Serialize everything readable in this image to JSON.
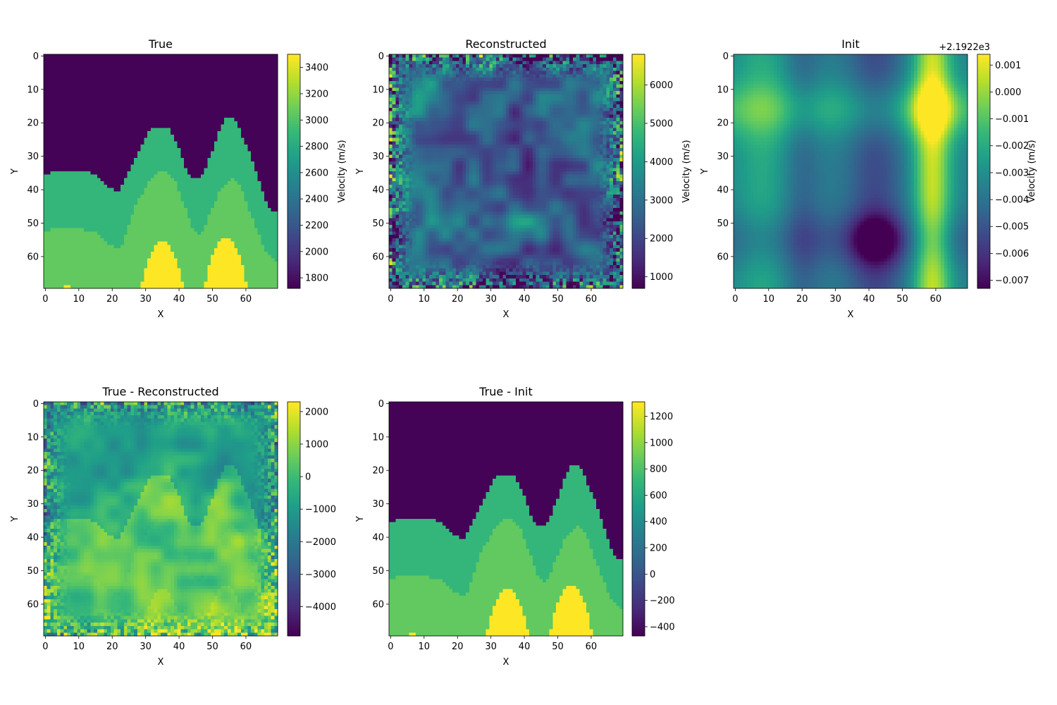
{
  "figure": {
    "colormap": "viridis",
    "viridis_stops": [
      "#440154",
      "#482878",
      "#3e4989",
      "#31688e",
      "#26828e",
      "#1f9e89",
      "#35b779",
      "#6ece58",
      "#b5de2b",
      "#fde725"
    ]
  },
  "chart_data": [
    {
      "type": "heatmap",
      "title": "True",
      "xlabel": "X",
      "ylabel": "Y",
      "xticks": [
        0,
        10,
        20,
        30,
        40,
        50,
        60
      ],
      "yticks": [
        0,
        10,
        20,
        30,
        40,
        50,
        60
      ],
      "grid_size": [
        70,
        70
      ],
      "colorbar": {
        "label": "Velocity (m/s)",
        "min": 1720,
        "max": 3500,
        "ticks": [
          1800,
          2000,
          2200,
          2400,
          2600,
          2800,
          3000,
          3200,
          3400
        ],
        "offset_text": ""
      },
      "field": "layered",
      "layers": {
        "top_boundary_points": [
          [
            0,
            36
          ],
          [
            5,
            34.5
          ],
          [
            13,
            34.5
          ],
          [
            22,
            41.5
          ],
          [
            27,
            32
          ],
          [
            31,
            24
          ],
          [
            33,
            21.5
          ],
          [
            37,
            21.5
          ],
          [
            40,
            27
          ],
          [
            43,
            35
          ],
          [
            45,
            37.5
          ],
          [
            47,
            37
          ],
          [
            50,
            30
          ],
          [
            53,
            21.5
          ],
          [
            55,
            18.5
          ],
          [
            57,
            19
          ],
          [
            61,
            28
          ],
          [
            64,
            36
          ],
          [
            67,
            45
          ],
          [
            69,
            47
          ]
        ],
        "mid_boundary_points": [
          [
            0,
            53
          ],
          [
            5,
            51.5
          ],
          [
            15,
            53
          ],
          [
            20,
            57
          ],
          [
            23,
            58
          ],
          [
            28,
            44
          ],
          [
            33,
            36
          ],
          [
            36,
            34.5
          ],
          [
            39,
            37
          ],
          [
            42,
            45
          ],
          [
            45,
            53
          ],
          [
            47,
            54
          ],
          [
            50,
            47
          ],
          [
            53,
            40
          ],
          [
            56,
            37
          ],
          [
            59,
            39
          ],
          [
            62,
            48
          ],
          [
            66,
            58
          ],
          [
            69,
            62
          ]
        ],
        "values": [
          1730,
          2900,
          3060,
          3500
        ]
      },
      "peaks": [
        {
          "center_x": 35.5,
          "half_width": 6.5,
          "top_y": 56
        },
        {
          "center_x": 54.5,
          "half_width": 6.5,
          "top_y": 55
        }
      ],
      "specks": [
        [
          6,
          69
        ],
        [
          7,
          69
        ]
      ]
    },
    {
      "type": "heatmap",
      "title": "Reconstructed",
      "xlabel": "X",
      "ylabel": "Y",
      "xticks": [
        0,
        10,
        20,
        30,
        40,
        50,
        60
      ],
      "yticks": [
        0,
        10,
        20,
        30,
        40,
        50,
        60
      ],
      "grid_size": [
        70,
        70
      ],
      "colorbar": {
        "label": "Velocity (m/s)",
        "min": 700,
        "max": 6800,
        "ticks": [
          1000,
          2000,
          3000,
          4000,
          5000,
          6000
        ],
        "offset_text": ""
      },
      "field": "noise",
      "noise": {
        "base": 2600,
        "spread": 1500,
        "edge_spread": 3500,
        "seed": 7
      }
    },
    {
      "type": "heatmap",
      "title": "Init",
      "xlabel": "X",
      "ylabel": "Y",
      "xticks": [
        0,
        10,
        20,
        30,
        40,
        50,
        60
      ],
      "yticks": [
        0,
        10,
        20,
        30,
        40,
        50,
        60
      ],
      "grid_size": [
        70,
        70
      ],
      "colorbar": {
        "label": "Velocity (m/s)",
        "min": -0.0073,
        "max": 0.0014,
        "ticks": [
          0.001,
          0.0,
          -0.001,
          -0.002,
          -0.003,
          -0.004,
          -0.005,
          -0.006,
          -0.007
        ],
        "tick_labels": [
          "0.001",
          "0.000",
          "−0.001",
          "−0.002",
          "−0.003",
          "−0.004",
          "−0.005",
          "−0.006",
          "−0.007"
        ],
        "offset_text": "+2.1922e3"
      },
      "field": "smooth",
      "smooth": {
        "base": -0.0035,
        "columns": [
          {
            "x": 8,
            "w": 6,
            "a": 0.0014
          },
          {
            "x": 20,
            "w": 4,
            "a": -0.001
          },
          {
            "x": 42,
            "w": 6,
            "a": -0.0018
          },
          {
            "x": 59,
            "w": 4,
            "a": 0.0042
          }
        ],
        "rows": [
          {
            "y": 16,
            "w": 6,
            "a": 0.0018
          },
          {
            "y": 55,
            "w": 6,
            "a": -0.0012
          }
        ],
        "blobs": [
          {
            "x": 42,
            "y": 55,
            "w": 5,
            "a": -0.0028
          },
          {
            "x": 59,
            "y": 16,
            "w": 5,
            "a": 0.0016
          }
        ]
      }
    },
    {
      "type": "heatmap",
      "title": "True - Reconstructed",
      "xlabel": "X",
      "ylabel": "Y",
      "xticks": [
        0,
        10,
        20,
        30,
        40,
        50,
        60
      ],
      "yticks": [
        0,
        10,
        20,
        30,
        40,
        50,
        60
      ],
      "grid_size": [
        70,
        70
      ],
      "colorbar": {
        "label": "",
        "min": -4900,
        "max": 2300,
        "ticks": [
          2000,
          1000,
          0,
          -1000,
          -2000,
          -3000,
          -4000
        ],
        "tick_labels": [
          "2000",
          "1000",
          "0",
          "−1000",
          "−2000",
          "−3000",
          "−4000"
        ],
        "offset_text": ""
      },
      "field": "difference",
      "noise": {
        "base": -700,
        "spread": 1100,
        "edge_spread": 2600,
        "seed": 11
      }
    },
    {
      "type": "heatmap",
      "title": "True - Init",
      "xlabel": "X",
      "ylabel": "Y",
      "xticks": [
        0,
        10,
        20,
        30,
        40,
        50,
        60
      ],
      "yticks": [
        0,
        10,
        20,
        30,
        40,
        50,
        60
      ],
      "grid_size": [
        70,
        70
      ],
      "colorbar": {
        "label": "",
        "min": -470,
        "max": 1310,
        "ticks": [
          1200,
          1000,
          800,
          600,
          400,
          200,
          0,
          -200,
          -400
        ],
        "tick_labels": [
          "1200",
          "1000",
          "800",
          "600",
          "400",
          "200",
          "0",
          "−200",
          "−400"
        ],
        "offset_text": ""
      },
      "field": "layered",
      "layers": {
        "top_boundary_points": [
          [
            0,
            36
          ],
          [
            5,
            34.5
          ],
          [
            13,
            34.5
          ],
          [
            22,
            41.5
          ],
          [
            27,
            32
          ],
          [
            31,
            24
          ],
          [
            33,
            21.5
          ],
          [
            37,
            21.5
          ],
          [
            40,
            27
          ],
          [
            43,
            35
          ],
          [
            45,
            37.5
          ],
          [
            47,
            37
          ],
          [
            50,
            30
          ],
          [
            53,
            21.5
          ],
          [
            55,
            18.5
          ],
          [
            57,
            19
          ],
          [
            61,
            28
          ],
          [
            64,
            36
          ],
          [
            67,
            45
          ],
          [
            69,
            47
          ]
        ],
        "mid_boundary_points": [
          [
            0,
            53
          ],
          [
            5,
            51.5
          ],
          [
            15,
            53
          ],
          [
            20,
            57
          ],
          [
            23,
            58
          ],
          [
            28,
            44
          ],
          [
            33,
            36
          ],
          [
            36,
            34.5
          ],
          [
            39,
            37
          ],
          [
            42,
            45
          ],
          [
            45,
            53
          ],
          [
            47,
            54
          ],
          [
            50,
            47
          ],
          [
            53,
            40
          ],
          [
            56,
            37
          ],
          [
            59,
            39
          ],
          [
            62,
            48
          ],
          [
            66,
            58
          ],
          [
            69,
            62
          ]
        ],
        "values": [
          -460,
          710,
          870,
          1310
        ]
      },
      "peaks": [
        {
          "center_x": 35.5,
          "half_width": 6.5,
          "top_y": 56
        },
        {
          "center_x": 54.5,
          "half_width": 6.5,
          "top_y": 55
        }
      ],
      "specks": [
        [
          6,
          69
        ],
        [
          7,
          69
        ]
      ]
    }
  ]
}
